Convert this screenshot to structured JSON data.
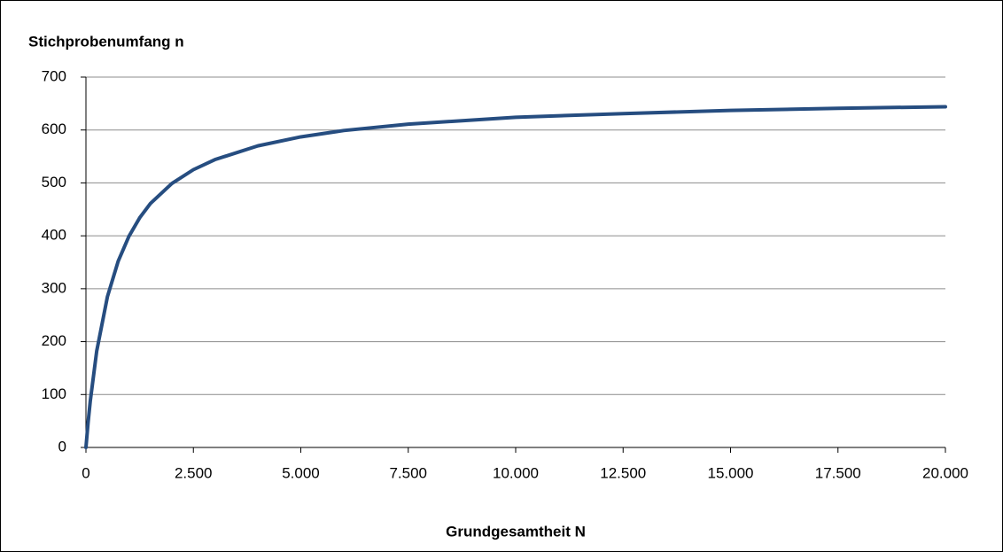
{
  "chart_data": {
    "type": "line",
    "y_label": "Stichprobenumfang n",
    "x_label": "Grundgesamtheit N",
    "x": [
      0,
      50,
      100,
      250,
      500,
      750,
      1000,
      1250,
      1500,
      2000,
      2500,
      3000,
      4000,
      5000,
      6000,
      7500,
      10000,
      12500,
      15000,
      17500,
      20000
    ],
    "values": [
      0,
      47,
      87,
      182,
      285,
      352,
      399,
      434,
      461,
      499,
      525,
      544,
      570,
      587,
      599,
      611,
      624,
      631,
      637,
      641,
      644
    ],
    "color": "#264d80",
    "xlim": [
      0,
      20000
    ],
    "xticks": [
      0,
      {
        "value": 2500,
        "label": "2.500"
      },
      {
        "value": 5000,
        "label": "5.000"
      },
      {
        "value": 7500,
        "label": "7.500"
      },
      {
        "value": 10000,
        "label": "10.000"
      },
      {
        "value": 12500,
        "label": "12.500"
      },
      {
        "value": 15000,
        "label": "15.000"
      },
      {
        "value": 17500,
        "label": "17.500"
      },
      {
        "value": 20000,
        "label": "20.000"
      }
    ],
    "ylim": [
      0,
      700
    ],
    "yticks": [
      0,
      100,
      200,
      300,
      400,
      500,
      600,
      700
    ],
    "grid": true
  }
}
